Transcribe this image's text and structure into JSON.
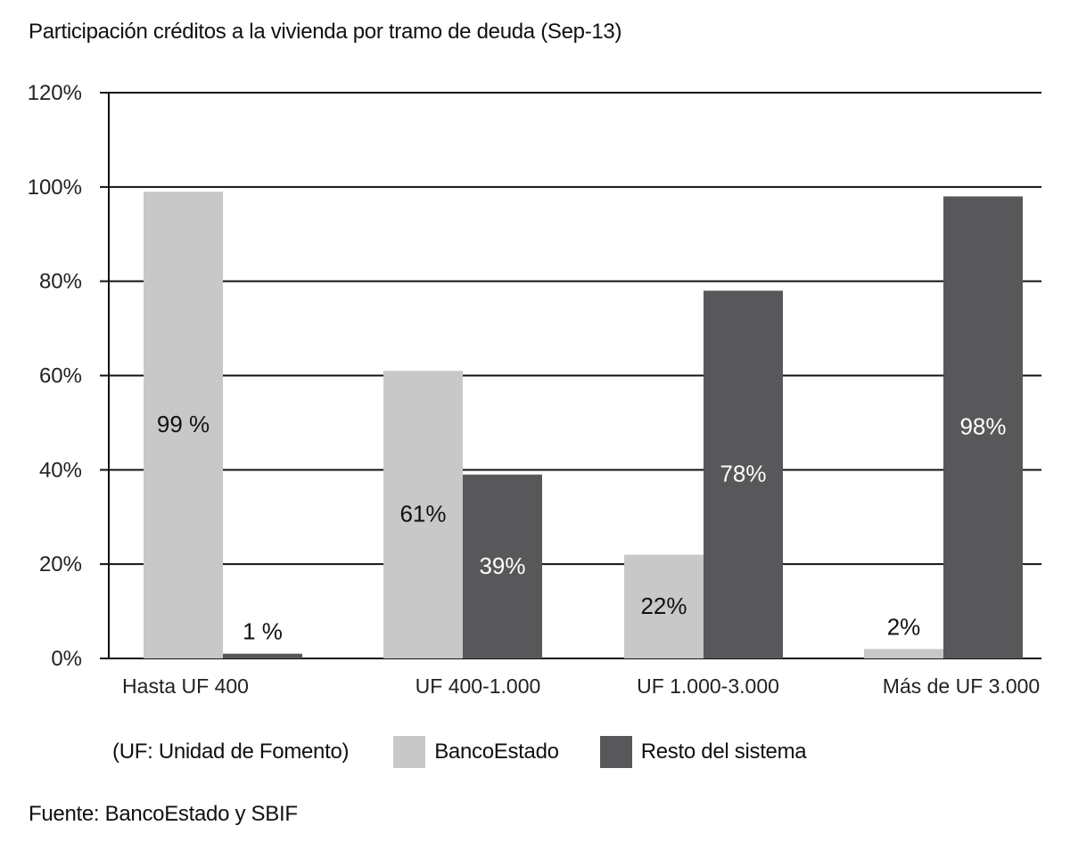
{
  "chart_data": {
    "type": "bar",
    "title": "Participación créditos a la vivienda por tramo de deuda (Sep-13)",
    "categories": [
      "Hasta UF 400",
      "UF 400-1.000",
      "UF 1.000-3.000",
      "Más de UF 3.000"
    ],
    "series": [
      {
        "name": "BancoEstado",
        "values": [
          99,
          61,
          22,
          2
        ],
        "labels": [
          "99 %",
          "61%",
          "22%",
          "2%"
        ],
        "color": "#c8c8c8",
        "label_color": "#111111"
      },
      {
        "name": "Resto del sistema",
        "values": [
          1,
          39,
          78,
          98
        ],
        "labels": [
          "1 %",
          "39%",
          "78%",
          "98%"
        ],
        "color": "#58585a",
        "label_color": "#ffffff"
      }
    ],
    "ylim": [
      0,
      120
    ],
    "yticks": [
      "0%",
      "20%",
      "40%",
      "60%",
      "80%",
      "100%",
      "120%"
    ],
    "ytick_values": [
      0,
      20,
      40,
      60,
      80,
      100,
      120
    ],
    "grid": true,
    "legend_note": "(UF: Unidad de Fomento)",
    "legend_placement": "bottom",
    "source": "Fuente: BancoEstado y SBIF"
  }
}
